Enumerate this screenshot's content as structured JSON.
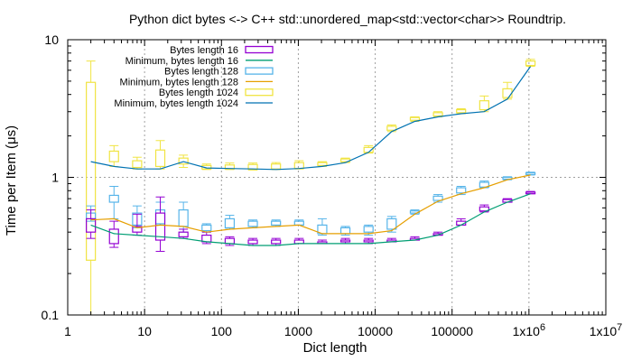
{
  "chart_data": {
    "type": "line",
    "title": "Python dict bytes <-> C++ std::unordered_map<std::vector<char>> Roundtrip.",
    "xlabel": "Dict length",
    "ylabel": "Time per Item (μs)",
    "x_scale": "log10",
    "y_scale": "log10",
    "xlim": [
      1,
      10000000
    ],
    "ylim": [
      0.1,
      10
    ],
    "grid": true,
    "legend_position": "top-center",
    "x_ticks": [
      {
        "value": 1,
        "label": "1"
      },
      {
        "value": 10,
        "label": "10"
      },
      {
        "value": 100,
        "label": "100"
      },
      {
        "value": 1000,
        "label": "1000"
      },
      {
        "value": 10000,
        "label": "10000"
      },
      {
        "value": 100000,
        "label": "100000"
      },
      {
        "value": 1000000,
        "label": "1x10",
        "sup": "6"
      },
      {
        "value": 10000000,
        "label": "1x10",
        "sup": "7"
      }
    ],
    "y_ticks": [
      {
        "value": 0.1,
        "label": "0.1"
      },
      {
        "value": 1,
        "label": "1"
      },
      {
        "value": 10,
        "label": "10"
      }
    ],
    "x": [
      2,
      4,
      8,
      16,
      32,
      64,
      128,
      256,
      512,
      1024,
      2048,
      4096,
      8192,
      16384,
      32768,
      65536,
      131072,
      262144,
      524288,
      1048576
    ],
    "series": [
      {
        "name": "Bytes length 16",
        "kind": "box",
        "color": "#9400d3",
        "low": [
          0.36,
          0.31,
          0.38,
          0.29,
          0.36,
          0.33,
          0.32,
          0.32,
          0.32,
          0.33,
          0.33,
          0.33,
          0.33,
          0.34,
          0.35,
          0.38,
          0.45,
          0.56,
          0.66,
          0.76
        ],
        "q1": [
          0.4,
          0.33,
          0.4,
          0.35,
          0.37,
          0.34,
          0.33,
          0.33,
          0.33,
          0.33,
          0.33,
          0.34,
          0.34,
          0.34,
          0.35,
          0.38,
          0.45,
          0.57,
          0.66,
          0.76
        ],
        "q3": [
          0.5,
          0.42,
          0.44,
          0.55,
          0.4,
          0.38,
          0.36,
          0.35,
          0.35,
          0.35,
          0.34,
          0.35,
          0.35,
          0.35,
          0.36,
          0.39,
          0.48,
          0.61,
          0.69,
          0.78
        ],
        "high": [
          0.58,
          0.48,
          0.54,
          0.72,
          0.42,
          0.4,
          0.37,
          0.36,
          0.36,
          0.36,
          0.35,
          0.36,
          0.36,
          0.36,
          0.37,
          0.4,
          0.5,
          0.63,
          0.7,
          0.79
        ]
      },
      {
        "name": "Minimum, bytes length 16",
        "kind": "line",
        "color": "#009e73",
        "values": [
          0.45,
          0.39,
          0.38,
          0.37,
          0.36,
          0.34,
          0.33,
          0.32,
          0.32,
          0.33,
          0.33,
          0.33,
          0.33,
          0.34,
          0.35,
          0.38,
          0.45,
          0.56,
          0.66,
          0.76
        ]
      },
      {
        "name": "Bytes length 128",
        "kind": "box",
        "color": "#56b4e9",
        "low": [
          0.48,
          0.5,
          0.43,
          0.45,
          0.4,
          0.4,
          0.42,
          0.43,
          0.44,
          0.45,
          0.38,
          0.38,
          0.38,
          0.4,
          0.54,
          0.66,
          0.75,
          0.84,
          0.96,
          1.04
        ],
        "q1": [
          0.5,
          0.66,
          0.45,
          0.46,
          0.44,
          0.41,
          0.43,
          0.44,
          0.45,
          0.45,
          0.39,
          0.39,
          0.4,
          0.42,
          0.55,
          0.68,
          0.77,
          0.85,
          0.97,
          1.05
        ],
        "q3": [
          0.55,
          0.74,
          0.55,
          0.58,
          0.58,
          0.45,
          0.5,
          0.48,
          0.48,
          0.48,
          0.45,
          0.43,
          0.44,
          0.5,
          0.57,
          0.73,
          0.84,
          0.92,
          1.0,
          1.08
        ],
        "high": [
          0.62,
          0.86,
          0.62,
          0.66,
          0.66,
          0.46,
          0.53,
          0.49,
          0.49,
          0.49,
          0.5,
          0.44,
          0.45,
          0.52,
          0.58,
          0.75,
          0.86,
          0.94,
          1.01,
          1.09
        ]
      },
      {
        "name": "Minimum, bytes length 128",
        "kind": "line",
        "color": "#e69f00",
        "values": [
          0.49,
          0.5,
          0.43,
          0.45,
          0.44,
          0.4,
          0.42,
          0.43,
          0.44,
          0.45,
          0.39,
          0.39,
          0.39,
          0.41,
          0.54,
          0.67,
          0.76,
          0.84,
          0.96,
          1.04
        ]
      },
      {
        "name": "Bytes length 1024",
        "kind": "box",
        "color": "#f0e442",
        "low": [
          0.09,
          1.2,
          1.15,
          1.15,
          1.18,
          1.14,
          1.14,
          1.13,
          1.14,
          1.15,
          1.2,
          1.28,
          1.5,
          2.15,
          2.55,
          2.75,
          2.9,
          3.0,
          3.7,
          6.4
        ],
        "q1": [
          0.25,
          1.3,
          1.18,
          1.2,
          1.25,
          1.15,
          1.15,
          1.14,
          1.15,
          1.16,
          1.22,
          1.3,
          1.52,
          2.2,
          2.6,
          2.8,
          2.95,
          3.1,
          3.8,
          6.5
        ],
        "q3": [
          4.9,
          1.55,
          1.32,
          1.58,
          1.38,
          1.22,
          1.23,
          1.24,
          1.25,
          1.28,
          1.28,
          1.36,
          1.65,
          2.35,
          2.72,
          2.95,
          3.1,
          3.6,
          4.4,
          7.0
        ],
        "high": [
          7.0,
          1.7,
          1.4,
          1.85,
          1.45,
          1.25,
          1.27,
          1.27,
          1.28,
          1.32,
          1.3,
          1.38,
          1.7,
          2.4,
          2.75,
          3.0,
          3.15,
          3.9,
          4.9,
          7.2
        ]
      },
      {
        "name": "Minimum, bytes length 1024",
        "kind": "line",
        "color": "#0072b2",
        "values": [
          1.3,
          1.2,
          1.15,
          1.15,
          1.3,
          1.17,
          1.16,
          1.15,
          1.14,
          1.16,
          1.2,
          1.28,
          1.52,
          2.15,
          2.55,
          2.75,
          2.9,
          3.0,
          3.7,
          6.4
        ]
      }
    ]
  }
}
